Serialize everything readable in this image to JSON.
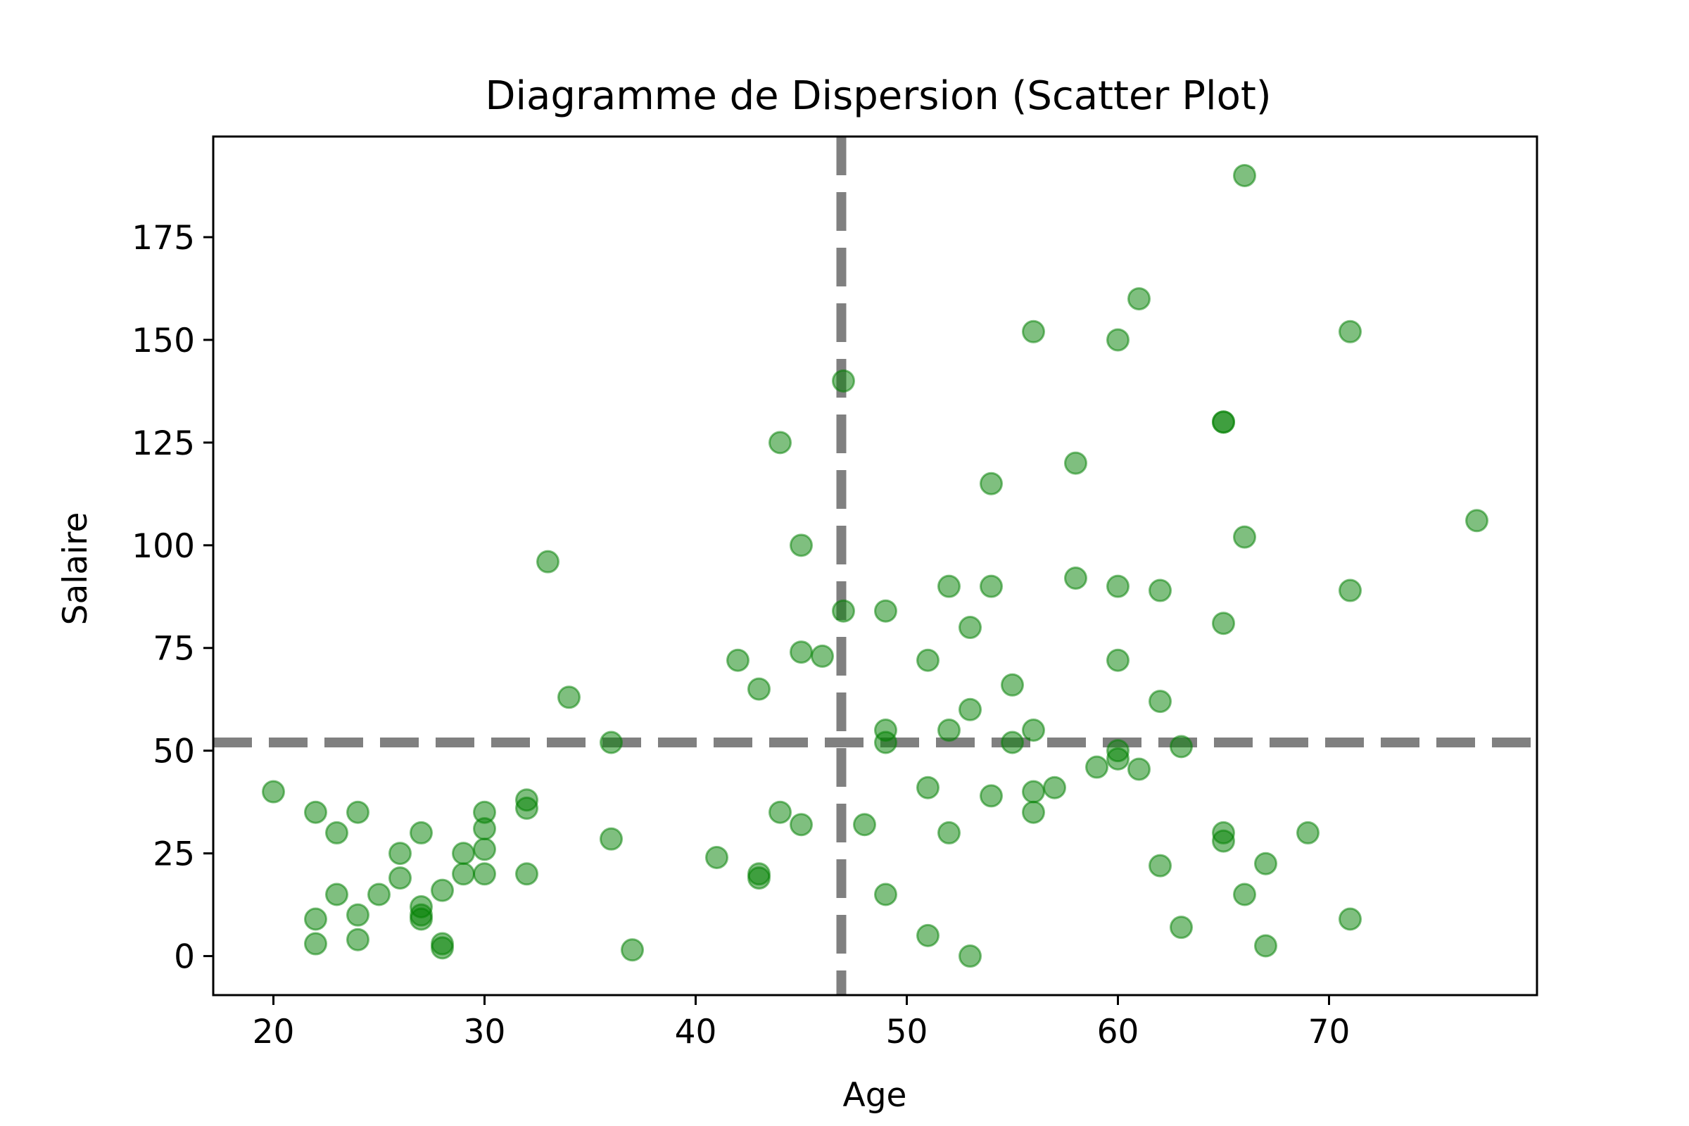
{
  "chart_data": {
    "type": "scatter",
    "title": "Diagramme de Dispersion (Scatter Plot)",
    "xlabel": "Age",
    "ylabel": "Salaire",
    "xlim": [
      17.15,
      79.85
    ],
    "ylim": [
      -9.5,
      199.5
    ],
    "xticks": [
      20,
      30,
      40,
      50,
      60,
      70
    ],
    "yticks": [
      0,
      25,
      50,
      75,
      100,
      125,
      150,
      175
    ],
    "grid": false,
    "legend": "none",
    "marker_color": "#008000",
    "marker_opacity": 0.5,
    "reference_lines": {
      "mean_x": 46.9,
      "mean_y": 52.0,
      "color": "#808080",
      "style": "dashed"
    },
    "series": [
      {
        "x": [
          20,
          22,
          22,
          22,
          23,
          23,
          24,
          24,
          24,
          25,
          26,
          26,
          27,
          27,
          27,
          27,
          28,
          28,
          28,
          29,
          29,
          30,
          30,
          30,
          30,
          32,
          32,
          32,
          33,
          34,
          36,
          36,
          37,
          41,
          42,
          43,
          43,
          43,
          44,
          44,
          45,
          45,
          45,
          46,
          47,
          47,
          48,
          49,
          49,
          49,
          49,
          51,
          51,
          51,
          52,
          52,
          52,
          53,
          53,
          53,
          54,
          54,
          54,
          55,
          55,
          56,
          56,
          56,
          56,
          57,
          58,
          58,
          59,
          60,
          60,
          60,
          60,
          60,
          61,
          61,
          62,
          62,
          62,
          63,
          63,
          65,
          65,
          65,
          65,
          65,
          66,
          66,
          66,
          67,
          67,
          69,
          71,
          71,
          71,
          77
        ],
        "y": [
          40,
          35,
          9,
          3,
          30,
          15,
          35,
          10,
          4,
          15,
          25,
          19,
          30,
          12,
          10,
          9,
          16,
          3,
          2,
          25,
          20,
          35,
          31,
          26,
          20,
          38,
          36,
          20,
          96,
          63,
          52,
          28.5,
          1.5,
          24,
          72,
          65,
          20,
          19,
          125,
          35,
          100,
          74,
          32,
          73,
          140,
          84,
          32,
          84,
          55,
          52,
          15,
          72,
          41,
          5,
          90,
          55,
          30,
          80,
          60,
          0,
          115,
          90,
          39,
          66,
          52,
          152,
          55,
          40,
          35,
          41,
          120,
          92,
          46,
          150,
          90,
          72,
          50,
          48,
          160,
          45.5,
          89,
          62,
          22,
          51,
          7,
          130,
          130,
          81,
          30,
          28,
          190,
          102,
          15,
          22.5,
          2.5,
          30,
          152,
          89,
          9,
          106
        ]
      }
    ]
  }
}
